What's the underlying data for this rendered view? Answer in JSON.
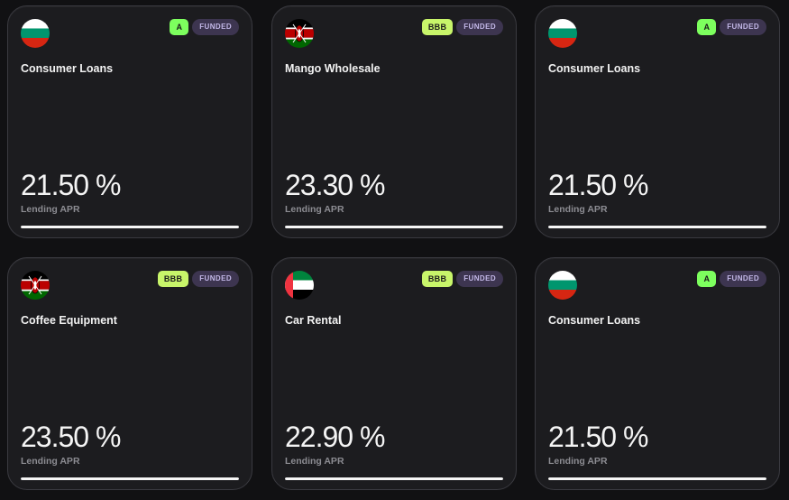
{
  "cards": [
    {
      "flag": "bulgaria-flag",
      "rating": "A",
      "status": "FUNDED",
      "title": "Consumer Loans",
      "apr": "21.50 %",
      "apr_label": "Lending APR",
      "progress": 1.0
    },
    {
      "flag": "kenya-flag",
      "rating": "BBB",
      "status": "FUNDED",
      "title": "Mango Wholesale",
      "apr": "23.30 %",
      "apr_label": "Lending APR",
      "progress": 1.0
    },
    {
      "flag": "bulgaria-flag",
      "rating": "A",
      "status": "FUNDED",
      "title": "Consumer Loans",
      "apr": "21.50 %",
      "apr_label": "Lending APR",
      "progress": 1.0
    },
    {
      "flag": "kenya-flag",
      "rating": "BBB",
      "status": "FUNDED",
      "title": "Coffee Equipment",
      "apr": "23.50 %",
      "apr_label": "Lending APR",
      "progress": 1.0
    },
    {
      "flag": "uae-flag",
      "rating": "BBB",
      "status": "FUNDED",
      "title": "Car Rental",
      "apr": "22.90 %",
      "apr_label": "Lending APR",
      "progress": 1.0
    },
    {
      "flag": "bulgaria-flag",
      "rating": "A",
      "status": "FUNDED",
      "title": "Consumer Loans",
      "apr": "21.50 %",
      "apr_label": "Lending APR",
      "progress": 1.0
    }
  ],
  "colors": {
    "background": "#111113",
    "card": "#1c1c1f",
    "rating_a": "#7dff5e",
    "rating_bbb": "#c8f56a",
    "status_bg": "#3d3550",
    "progress_fill": "#f5f5f5"
  }
}
